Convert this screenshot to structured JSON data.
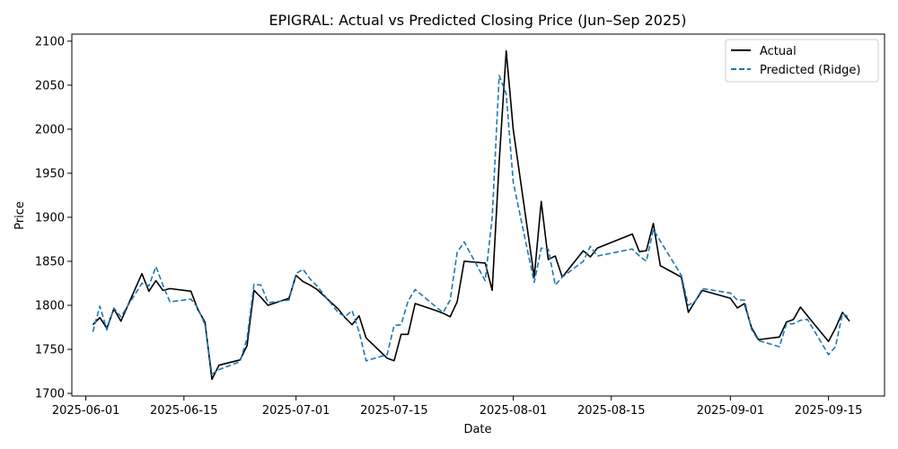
{
  "chart_data": {
    "type": "line",
    "title": "EPIGRAL: Actual vs Predicted Closing Price (Jun–Sep 2025)",
    "xlabel": "Date",
    "ylabel": "Price",
    "xlim": [
      "2025-05-30",
      "2025-09-23"
    ],
    "ylim": [
      1697,
      2108
    ],
    "x_ticks": [
      "2025-06-01",
      "2025-06-15",
      "2025-07-01",
      "2025-07-15",
      "2025-08-01",
      "2025-08-15",
      "2025-09-01",
      "2025-09-15"
    ],
    "y_ticks": [
      1700,
      1750,
      1800,
      1850,
      1900,
      1950,
      2000,
      2050,
      2100
    ],
    "grid": false,
    "legend_position": "top-right",
    "x": [
      "2025-06-02",
      "2025-06-03",
      "2025-06-04",
      "2025-06-05",
      "2025-06-06",
      "2025-06-09",
      "2025-06-10",
      "2025-06-11",
      "2025-06-12",
      "2025-06-13",
      "2025-06-16",
      "2025-06-17",
      "2025-06-18",
      "2025-06-19",
      "2025-06-20",
      "2025-06-23",
      "2025-06-24",
      "2025-06-25",
      "2025-06-26",
      "2025-06-27",
      "2025-06-30",
      "2025-07-01",
      "2025-07-02",
      "2025-07-03",
      "2025-07-04",
      "2025-07-07",
      "2025-07-08",
      "2025-07-09",
      "2025-07-10",
      "2025-07-11",
      "2025-07-14",
      "2025-07-15",
      "2025-07-16",
      "2025-07-17",
      "2025-07-18",
      "2025-07-21",
      "2025-07-22",
      "2025-07-23",
      "2025-07-24",
      "2025-07-25",
      "2025-07-28",
      "2025-07-29",
      "2025-07-30",
      "2025-07-31",
      "2025-08-01",
      "2025-08-04",
      "2025-08-05",
      "2025-08-06",
      "2025-08-07",
      "2025-08-08",
      "2025-08-11",
      "2025-08-12",
      "2025-08-13",
      "2025-08-18",
      "2025-08-19",
      "2025-08-20",
      "2025-08-21",
      "2025-08-22",
      "2025-08-25",
      "2025-08-26",
      "2025-08-27",
      "2025-08-28",
      "2025-09-01",
      "2025-09-02",
      "2025-09-03",
      "2025-09-04",
      "2025-09-05",
      "2025-09-08",
      "2025-09-09",
      "2025-09-10",
      "2025-09-11",
      "2025-09-12",
      "2025-09-15",
      "2025-09-16",
      "2025-09-17",
      "2025-09-18"
    ],
    "series": [
      {
        "name": "Actual",
        "color": "#000000",
        "dash": "solid",
        "values": [
          1778,
          1786,
          1774,
          1796,
          1782,
          1836,
          1816,
          1828,
          1817,
          1819,
          1816,
          1795,
          1781,
          1716,
          1732,
          1738,
          1754,
          1817,
          1809,
          1800,
          1808,
          1834,
          1827,
          1823,
          1818,
          1796,
          1786,
          1778,
          1788,
          1763,
          1740,
          1737,
          1767,
          1767,
          1802,
          1794,
          1791,
          1787,
          1804,
          1850,
          1848,
          1817,
          1963,
          2089,
          2000,
          1832,
          1918,
          1852,
          1856,
          1832,
          1862,
          1855,
          1865,
          1881,
          1861,
          1862,
          1893,
          1845,
          1832,
          1792,
          1805,
          1817,
          1808,
          1797,
          1802,
          1775,
          1761,
          1764,
          1781,
          1784,
          1798,
          1788,
          1759,
          1774,
          1792,
          1782
        ]
      },
      {
        "name": "Predicted (Ridge)",
        "color": "#1f77b4",
        "dash": "dashed",
        "values": [
          1770,
          1799,
          1772,
          1797,
          1787,
          1825,
          1822,
          1844,
          1823,
          1804,
          1807,
          1797,
          1778,
          1722,
          1727,
          1736,
          1762,
          1824,
          1823,
          1803,
          1806,
          1836,
          1841,
          1830,
          1822,
          1792,
          1787,
          1794,
          1770,
          1737,
          1744,
          1777,
          1778,
          1805,
          1818,
          1798,
          1792,
          1806,
          1860,
          1872,
          1828,
          1900,
          2061,
          2040,
          1940,
          1826,
          1865,
          1864,
          1823,
          1832,
          1850,
          1867,
          1856,
          1864,
          1856,
          1850,
          1886,
          1873,
          1834,
          1800,
          1805,
          1819,
          1814,
          1806,
          1806,
          1773,
          1760,
          1753,
          1779,
          1779,
          1783,
          1784,
          1744,
          1753,
          1791,
          1786
        ]
      }
    ]
  }
}
